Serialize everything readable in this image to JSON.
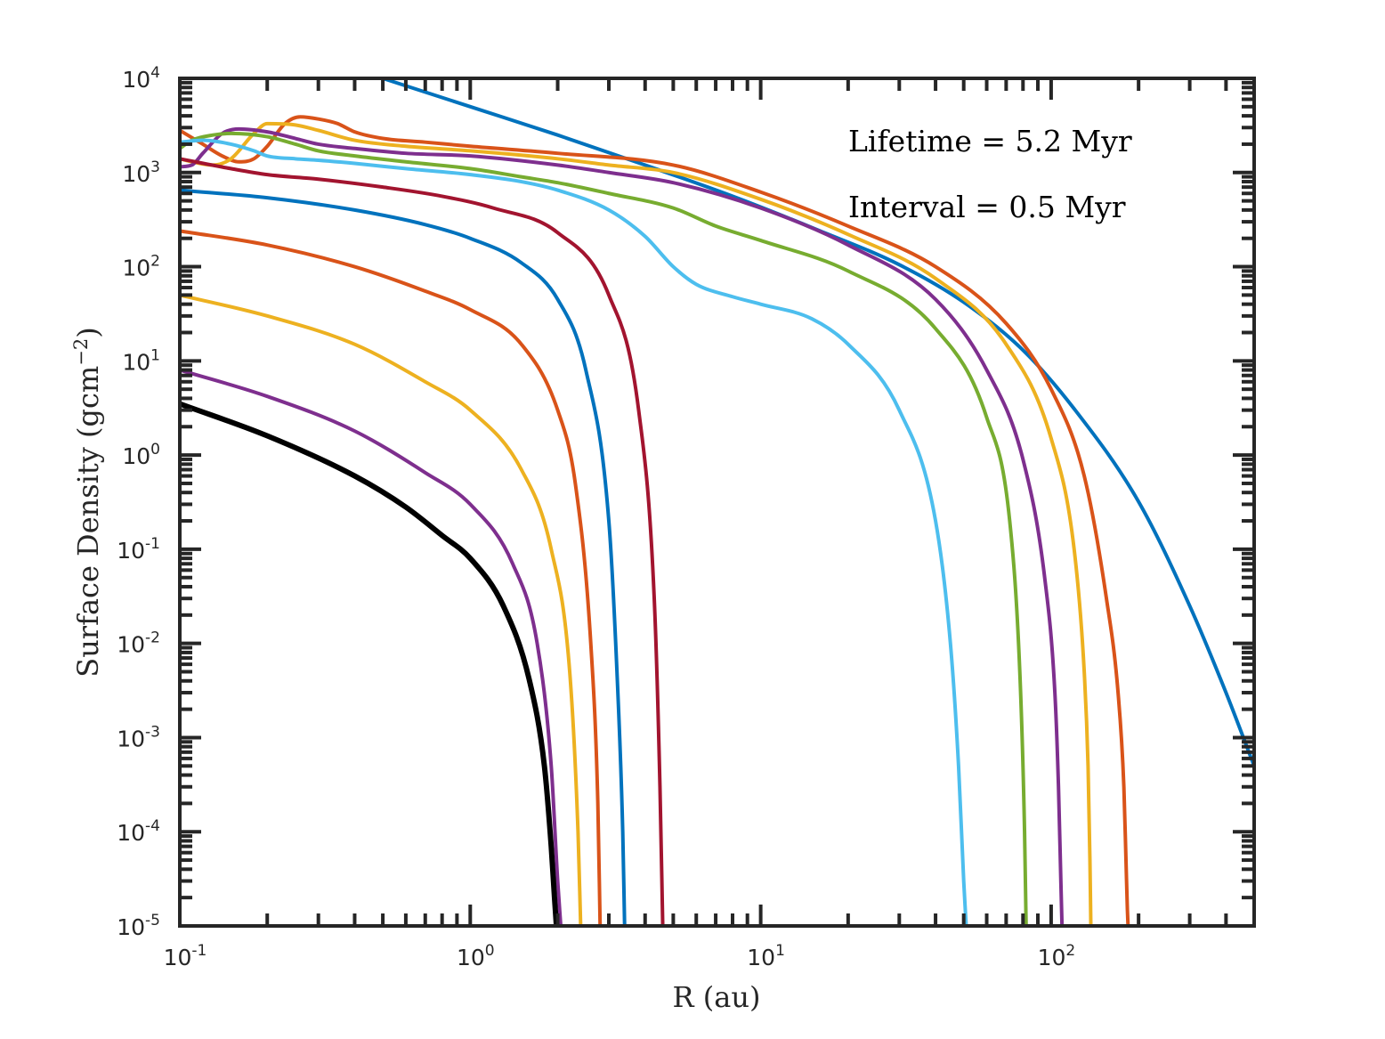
{
  "chart_data": {
    "type": "line",
    "xlabel": "R (au)",
    "ylabel": "Surface Density (gcm",
    "ylabel_exponent": "−2",
    "ylabel_close": ")",
    "x_scale": "log",
    "y_scale": "log",
    "xlim": [
      0.1,
      500
    ],
    "ylim": [
      1e-05,
      10000
    ],
    "x_ticks": [
      {
        "value": 0.1,
        "base": "10",
        "exp": "-1"
      },
      {
        "value": 1,
        "base": "10",
        "exp": "0"
      },
      {
        "value": 10,
        "base": "10",
        "exp": "1"
      },
      {
        "value": 100,
        "base": "10",
        "exp": "2"
      }
    ],
    "y_ticks": [
      {
        "value": 1e-05,
        "base": "10",
        "exp": "-5"
      },
      {
        "value": 0.0001,
        "base": "10",
        "exp": "-4"
      },
      {
        "value": 0.001,
        "base": "10",
        "exp": "-3"
      },
      {
        "value": 0.01,
        "base": "10",
        "exp": "-2"
      },
      {
        "value": 0.1,
        "base": "10",
        "exp": "-1"
      },
      {
        "value": 1,
        "base": "10",
        "exp": "0"
      },
      {
        "value": 10,
        "base": "10",
        "exp": "1"
      },
      {
        "value": 100,
        "base": "10",
        "exp": "2"
      },
      {
        "value": 1000,
        "base": "10",
        "exp": "3"
      },
      {
        "value": 10000,
        "base": "10",
        "exp": "4"
      }
    ],
    "grid": false,
    "legend": "none",
    "box": true,
    "annotations": [
      "Lifetime = 5.2 Myr",
      "Interval = 0.5 Myr"
    ],
    "series": [
      {
        "color": "#0072BD",
        "width": 4,
        "x": [
          0.5,
          1,
          2,
          4,
          8,
          16,
          30,
          50,
          80,
          120,
          200,
          300,
          400,
          500
        ],
        "y": [
          10000,
          5000,
          2500,
          1200,
          560,
          240,
          105,
          42,
          13,
          3.1,
          0.32,
          0.025,
          0.003,
          0.0005
        ]
      },
      {
        "color": "#D95319",
        "width": 4,
        "x": [
          0.1,
          0.12,
          0.14,
          0.16,
          0.18,
          0.2,
          0.23,
          0.26,
          0.3,
          0.35,
          0.4,
          0.5,
          0.7,
          1,
          2,
          5,
          10,
          20,
          40,
          70,
          100,
          130,
          155,
          170,
          178,
          181,
          183,
          184
        ],
        "y": [
          2800,
          2000,
          1500,
          1300,
          1400,
          1900,
          3300,
          3900,
          3700,
          3300,
          2700,
          2300,
          2100,
          1900,
          1600,
          1200,
          620,
          270,
          100,
          25,
          5,
          0.6,
          0.03,
          0.003,
          0.0003,
          5e-05,
          1.5e-05,
          1e-05
        ]
      },
      {
        "color": "#EDB120",
        "width": 4,
        "x": [
          0.1,
          0.11,
          0.13,
          0.15,
          0.18,
          0.2,
          0.25,
          0.3,
          0.4,
          0.6,
          1,
          2,
          3,
          5,
          10,
          20,
          40,
          70,
          100,
          120,
          130,
          134,
          136,
          137
        ],
        "y": [
          1400,
          1300,
          1200,
          1400,
          2600,
          3300,
          3200,
          2800,
          2200,
          1900,
          1700,
          1400,
          1200,
          1000,
          520,
          220,
          75,
          15,
          1.5,
          0.1,
          0.005,
          0.0005,
          5e-05,
          1e-05
        ]
      },
      {
        "color": "#7E2F8E",
        "width": 4,
        "x": [
          0.1,
          0.11,
          0.12,
          0.14,
          0.16,
          0.2,
          0.25,
          0.3,
          0.4,
          0.6,
          1,
          2,
          3,
          5,
          10,
          20,
          40,
          60,
          80,
          95,
          103,
          106,
          108,
          109
        ],
        "y": [
          1150,
          1200,
          1600,
          2600,
          2900,
          2700,
          2300,
          2000,
          1800,
          1600,
          1500,
          1200,
          1000,
          780,
          420,
          170,
          45,
          8,
          0.9,
          0.05,
          0.003,
          0.0003,
          3e-05,
          1e-05
        ]
      },
      {
        "color": "#77AC30",
        "width": 4,
        "x": [
          0.1,
          0.11,
          0.13,
          0.15,
          0.2,
          0.25,
          0.3,
          0.4,
          0.6,
          1,
          1.5,
          2,
          3,
          5,
          7,
          10,
          20,
          40,
          60,
          72,
          78,
          81,
          82
        ],
        "y": [
          1800,
          2200,
          2500,
          2600,
          2400,
          2000,
          1700,
          1500,
          1300,
          1100,
          900,
          780,
          600,
          420,
          270,
          190,
          90,
          22,
          2.5,
          0.2,
          0.005,
          0.0001,
          1e-05
        ]
      },
      {
        "color": "#4DBEEE",
        "width": 4,
        "x": [
          0.1,
          0.12,
          0.15,
          0.18,
          0.2,
          0.25,
          0.3,
          0.4,
          0.6,
          1,
          1.5,
          2,
          3,
          4,
          5,
          6,
          8,
          10,
          15,
          20,
          30,
          40,
          45,
          48,
          50,
          51
        ],
        "y": [
          2100,
          2200,
          2000,
          1700,
          1500,
          1400,
          1350,
          1250,
          1100,
          950,
          800,
          650,
          400,
          210,
          100,
          65,
          48,
          40,
          28,
          15,
          3,
          0.2,
          0.01,
          0.0005,
          3e-05,
          1e-05
        ]
      },
      {
        "color": "#A2142F",
        "width": 4,
        "x": [
          0.1,
          0.15,
          0.2,
          0.3,
          0.5,
          0.8,
          1.2,
          2,
          3,
          3.8,
          4.3,
          4.5,
          4.6
        ],
        "y": [
          1400,
          1100,
          950,
          850,
          700,
          560,
          420,
          230,
          50,
          3,
          0.03,
          0.0003,
          1e-05
        ]
      },
      {
        "color": "#0072BD",
        "width": 4,
        "x": [
          0.1,
          0.2,
          0.4,
          0.7,
          1,
          1.5,
          2,
          2.5,
          3,
          3.2,
          3.35,
          3.4
        ],
        "y": [
          650,
          540,
          400,
          280,
          200,
          110,
          45,
          8,
          0.2,
          0.005,
          0.0001,
          1e-05
        ]
      },
      {
        "color": "#D95319",
        "width": 4,
        "x": [
          0.1,
          0.2,
          0.4,
          0.7,
          1,
          1.5,
          2,
          2.3,
          2.6,
          2.75,
          2.8
        ],
        "y": [
          240,
          170,
          100,
          55,
          35,
          15,
          3,
          0.5,
          0.01,
          0.0002,
          1e-05
        ]
      },
      {
        "color": "#EDB120",
        "width": 4,
        "x": [
          0.1,
          0.2,
          0.4,
          0.7,
          1,
          1.5,
          1.9,
          2.2,
          2.35,
          2.4
        ],
        "y": [
          50,
          30,
          15,
          6,
          3,
          0.7,
          0.1,
          0.005,
          0.0001,
          1e-05
        ]
      },
      {
        "color": "#7E2F8E",
        "width": 4,
        "x": [
          0.1,
          0.2,
          0.4,
          0.7,
          1,
          1.4,
          1.7,
          1.9,
          2,
          2.05
        ],
        "y": [
          8,
          4.2,
          1.8,
          0.65,
          0.3,
          0.07,
          0.01,
          0.0005,
          3e-05,
          1e-05
        ]
      },
      {
        "color": "#000000",
        "width": 6,
        "x": [
          0.1,
          0.2,
          0.4,
          0.6,
          0.8,
          1,
          1.3,
          1.6,
          1.8,
          1.9,
          1.95,
          1.98
        ],
        "y": [
          3.5,
          1.6,
          0.6,
          0.28,
          0.14,
          0.08,
          0.025,
          0.004,
          0.0005,
          7e-05,
          2e-05,
          1e-05
        ]
      }
    ]
  }
}
